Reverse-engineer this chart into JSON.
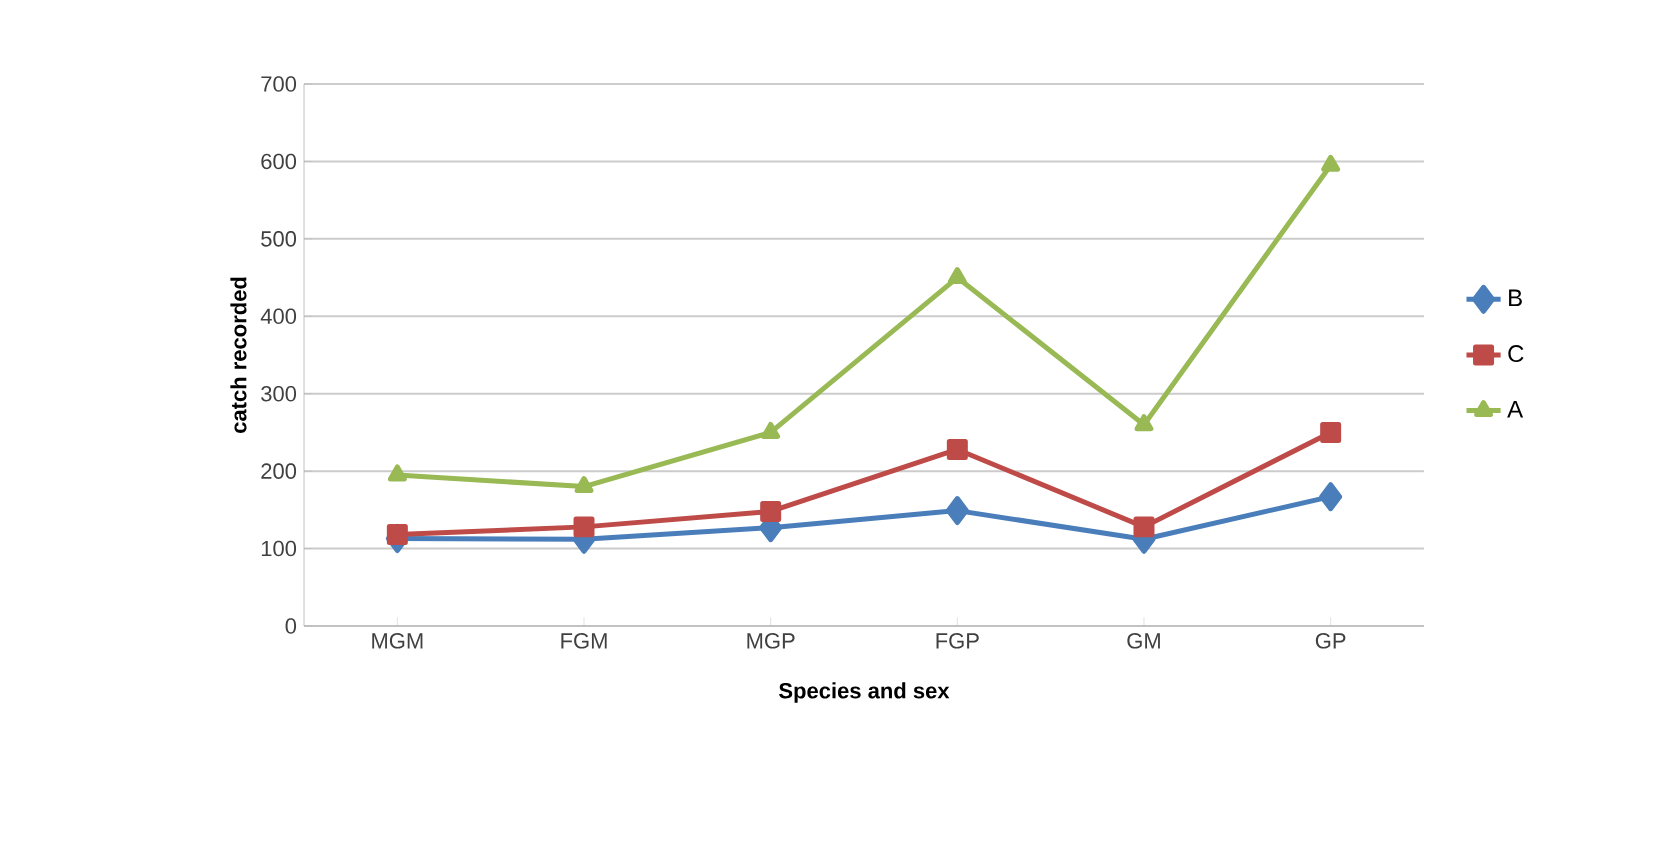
{
  "chart_data": {
    "type": "line",
    "xlabel": "Species and sex",
    "ylabel": "catch recorded",
    "categories": [
      "MGM",
      "FGM",
      "MGP",
      "FGP",
      "GM",
      "GP"
    ],
    "series": [
      {
        "name": "B",
        "color": "#4a7ebb",
        "marker": "diamond",
        "values": [
          113,
          112,
          127,
          149,
          112,
          167
        ]
      },
      {
        "name": "C",
        "color": "#be4b48",
        "marker": "square",
        "values": [
          118,
          128,
          148,
          228,
          128,
          250
        ]
      },
      {
        "name": "A",
        "color": "#98b954",
        "marker": "triangle",
        "values": [
          195,
          180,
          250,
          450,
          260,
          595
        ]
      }
    ],
    "ylim": [
      0,
      700
    ],
    "yticks": [
      0,
      100,
      200,
      300,
      400,
      500,
      600,
      700
    ],
    "grid": "y",
    "legend": "right"
  }
}
